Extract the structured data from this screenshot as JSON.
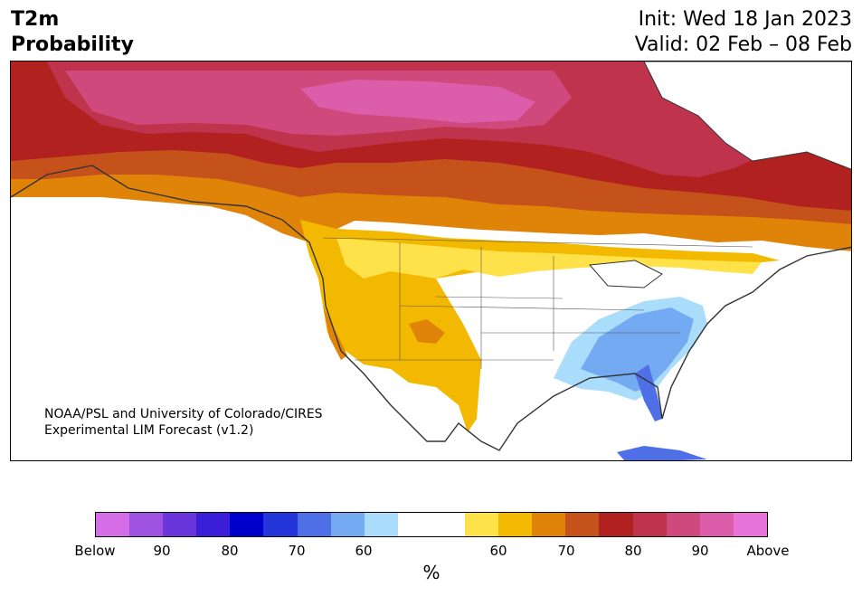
{
  "header": {
    "title_line1": "T2m",
    "title_line2": "Probability",
    "init": "Init: Wed 18 Jan 2023",
    "valid": "Valid: 02 Feb – 08 Feb"
  },
  "credit": {
    "line1": "NOAA/PSL and University of Colorado/CIRES",
    "line2": "Experimental LIM Forecast (v1.2)"
  },
  "colorbar": {
    "colors": [
      "#d56de6",
      "#9f52e0",
      "#6a36db",
      "#3b1fd8",
      "#0000cc",
      "#2436d9",
      "#4f6fe6",
      "#73aaf1",
      "#aadcfb",
      "#ffffff",
      "#ffffff",
      "#ffe24a",
      "#f3b800",
      "#df8408",
      "#c5521a",
      "#b1211f",
      "#c0334d",
      "#cf497c",
      "#dc5eab",
      "#e673d9"
    ],
    "tick_labels": [
      "Below",
      "90",
      "80",
      "70",
      "60",
      "60",
      "70",
      "80",
      "90",
      "Above"
    ],
    "unit": "%"
  },
  "map": {
    "region": "North America",
    "category_colors": {
      "above_90": "#dc5eab",
      "above_80": "#c0334d",
      "above_70": "#b1211f",
      "above_60": "#df8408",
      "above_50": "#f3b800",
      "above_40": "#ffe24a",
      "below_60": "#aadcfb",
      "below_70": "#73aaf1",
      "below_80": "#4f6fe6",
      "below_90": "#2436d9"
    }
  }
}
